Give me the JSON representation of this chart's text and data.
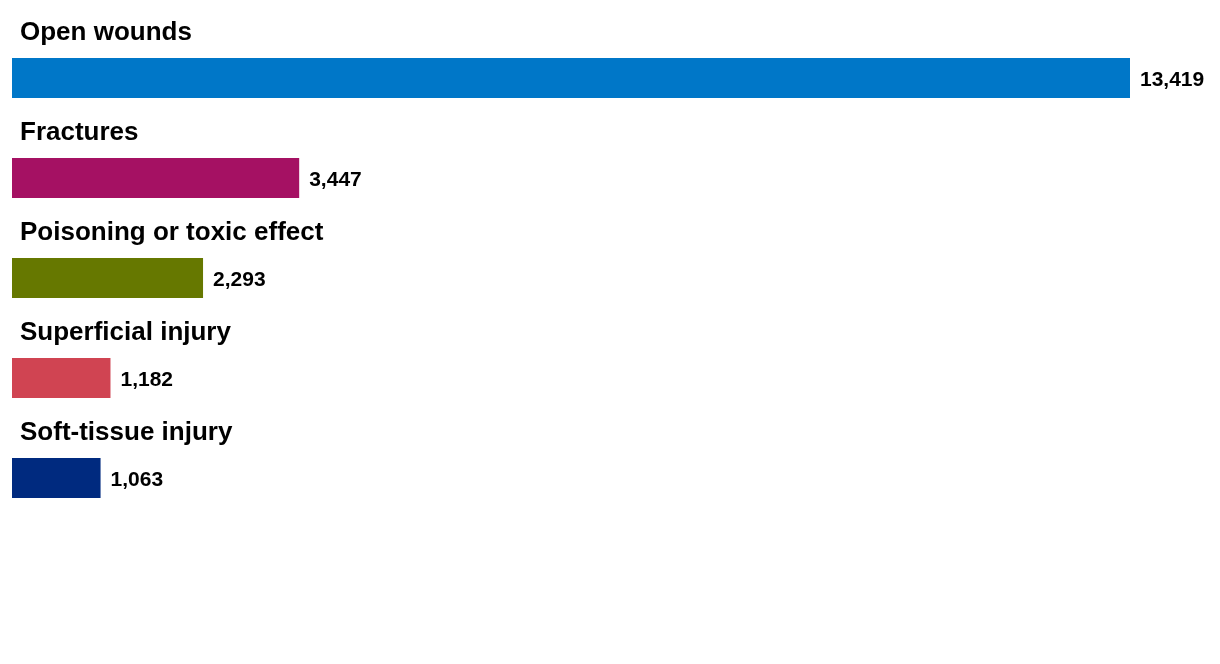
{
  "chart_data": {
    "type": "bar",
    "orientation": "horizontal",
    "categories": [
      "Open wounds",
      "Fractures",
      "Poisoning or toxic effect",
      "Superficial injury",
      "Soft-tissue injury"
    ],
    "values": [
      13419,
      3447,
      2293,
      1182,
      1063
    ],
    "value_labels": [
      "13,419",
      "3,447",
      "2,293",
      "1,182",
      "1,063"
    ],
    "colors": [
      "#0077c8",
      "#a51163",
      "#667800",
      "#d04452",
      "#002a7f"
    ]
  }
}
